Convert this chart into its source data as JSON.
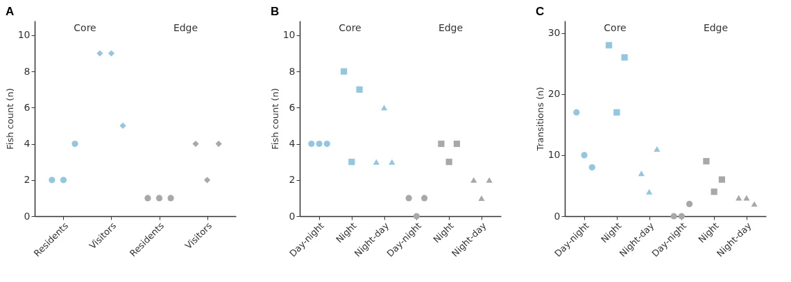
{
  "chart_data": [
    {
      "type": "scatter",
      "title": "A",
      "ylabel": "Fish count (n)",
      "categories": [
        "Residents",
        "Visitors",
        "Residents",
        "Visitors"
      ],
      "ylim": [
        0,
        10.8
      ],
      "yticks": [
        0,
        2,
        4,
        6,
        8,
        10
      ],
      "grid": false,
      "annotations": [
        "Core",
        "Edge"
      ],
      "series": [
        {
          "marker": "circle",
          "color": "#95c6df",
          "values": [
            2,
            null,
            null,
            null
          ]
        },
        {
          "marker": "circle",
          "color": "#95c6df",
          "values": [
            2,
            null,
            null,
            null
          ]
        },
        {
          "marker": "circle",
          "color": "#95c6df",
          "values": [
            4,
            null,
            null,
            null
          ]
        },
        {
          "marker": "diamond",
          "color": "#95c6df",
          "values": [
            null,
            9,
            null,
            null
          ]
        },
        {
          "marker": "diamond",
          "color": "#95c6df",
          "values": [
            null,
            9,
            null,
            null
          ]
        },
        {
          "marker": "diamond",
          "color": "#95c6df",
          "values": [
            null,
            5,
            null,
            null
          ]
        },
        {
          "marker": "circle",
          "color": "#a8a8a8",
          "values": [
            null,
            null,
            1,
            null
          ]
        },
        {
          "marker": "circle",
          "color": "#a8a8a8",
          "values": [
            null,
            null,
            1,
            null
          ]
        },
        {
          "marker": "circle",
          "color": "#a8a8a8",
          "values": [
            null,
            null,
            1,
            null
          ]
        },
        {
          "marker": "diamond",
          "color": "#a8a8a8",
          "values": [
            null,
            null,
            null,
            4
          ]
        },
        {
          "marker": "diamond",
          "color": "#a8a8a8",
          "values": [
            null,
            null,
            null,
            2
          ]
        },
        {
          "marker": "diamond",
          "color": "#a8a8a8",
          "values": [
            null,
            null,
            null,
            4
          ]
        }
      ]
    },
    {
      "type": "scatter",
      "title": "B",
      "ylabel": "Fish count (n)",
      "categories": [
        "Day-night",
        "Night",
        "Night-day",
        "Day-night",
        "Night",
        "Night-day"
      ],
      "ylim": [
        0,
        10.8
      ],
      "yticks": [
        0,
        2,
        4,
        6,
        8,
        10
      ],
      "grid": false,
      "annotations": [
        "Core",
        "Edge"
      ],
      "series": [
        {
          "marker": "circle",
          "color": "#95c6df",
          "values": [
            4,
            null,
            null,
            null,
            null,
            null
          ]
        },
        {
          "marker": "circle",
          "color": "#95c6df",
          "values": [
            4,
            null,
            null,
            null,
            null,
            null
          ]
        },
        {
          "marker": "circle",
          "color": "#95c6df",
          "values": [
            4,
            null,
            null,
            null,
            null,
            null
          ]
        },
        {
          "marker": "square",
          "color": "#95c6df",
          "values": [
            null,
            8,
            null,
            null,
            null,
            null
          ]
        },
        {
          "marker": "square",
          "color": "#95c6df",
          "values": [
            null,
            3,
            null,
            null,
            null,
            null
          ]
        },
        {
          "marker": "square",
          "color": "#95c6df",
          "values": [
            null,
            7,
            null,
            null,
            null,
            null
          ]
        },
        {
          "marker": "triangle",
          "color": "#95c6df",
          "values": [
            null,
            null,
            3,
            null,
            null,
            null
          ]
        },
        {
          "marker": "triangle",
          "color": "#95c6df",
          "values": [
            null,
            null,
            6,
            null,
            null,
            null
          ]
        },
        {
          "marker": "triangle",
          "color": "#95c6df",
          "values": [
            null,
            null,
            3,
            null,
            null,
            null
          ]
        },
        {
          "marker": "circle",
          "color": "#a8a8a8",
          "values": [
            null,
            null,
            null,
            1,
            null,
            null
          ]
        },
        {
          "marker": "circle",
          "color": "#a8a8a8",
          "values": [
            null,
            null,
            null,
            0,
            null,
            null
          ]
        },
        {
          "marker": "circle",
          "color": "#a8a8a8",
          "values": [
            null,
            null,
            null,
            1,
            null,
            null
          ]
        },
        {
          "marker": "square",
          "color": "#a8a8a8",
          "values": [
            null,
            null,
            null,
            null,
            4,
            null
          ]
        },
        {
          "marker": "square",
          "color": "#a8a8a8",
          "values": [
            null,
            null,
            null,
            null,
            3,
            null
          ]
        },
        {
          "marker": "square",
          "color": "#a8a8a8",
          "values": [
            null,
            null,
            null,
            null,
            4,
            null
          ]
        },
        {
          "marker": "triangle",
          "color": "#a8a8a8",
          "values": [
            null,
            null,
            null,
            null,
            null,
            2
          ]
        },
        {
          "marker": "triangle",
          "color": "#a8a8a8",
          "values": [
            null,
            null,
            null,
            null,
            null,
            1
          ]
        },
        {
          "marker": "triangle",
          "color": "#a8a8a8",
          "values": [
            null,
            null,
            null,
            null,
            null,
            2
          ]
        }
      ]
    },
    {
      "type": "scatter",
      "title": "C",
      "ylabel": "Transitions (n)",
      "categories": [
        "Day-night",
        "Night",
        "Night-day",
        "Day-night",
        "Night",
        "Night-day"
      ],
      "ylim": [
        0,
        32
      ],
      "yticks": [
        0,
        10,
        20,
        30
      ],
      "grid": false,
      "annotations": [
        "Core",
        "Edge"
      ],
      "series": [
        {
          "marker": "circle",
          "color": "#95c6df",
          "values": [
            17,
            null,
            null,
            null,
            null,
            null
          ]
        },
        {
          "marker": "circle",
          "color": "#95c6df",
          "values": [
            10,
            null,
            null,
            null,
            null,
            null
          ]
        },
        {
          "marker": "circle",
          "color": "#95c6df",
          "values": [
            8,
            null,
            null,
            null,
            null,
            null
          ]
        },
        {
          "marker": "square",
          "color": "#95c6df",
          "values": [
            null,
            28,
            null,
            null,
            null,
            null
          ]
        },
        {
          "marker": "square",
          "color": "#95c6df",
          "values": [
            null,
            17,
            null,
            null,
            null,
            null
          ]
        },
        {
          "marker": "square",
          "color": "#95c6df",
          "values": [
            null,
            26,
            null,
            null,
            null,
            null
          ]
        },
        {
          "marker": "triangle",
          "color": "#95c6df",
          "values": [
            null,
            null,
            7,
            null,
            null,
            null
          ]
        },
        {
          "marker": "triangle",
          "color": "#95c6df",
          "values": [
            null,
            null,
            4,
            null,
            null,
            null
          ]
        },
        {
          "marker": "triangle",
          "color": "#95c6df",
          "values": [
            null,
            null,
            11,
            null,
            null,
            null
          ]
        },
        {
          "marker": "circle",
          "color": "#a8a8a8",
          "values": [
            null,
            null,
            null,
            0,
            null,
            null
          ]
        },
        {
          "marker": "circle",
          "color": "#a8a8a8",
          "values": [
            null,
            null,
            null,
            0,
            null,
            null
          ]
        },
        {
          "marker": "circle",
          "color": "#a8a8a8",
          "values": [
            null,
            null,
            null,
            2,
            null,
            null
          ]
        },
        {
          "marker": "square",
          "color": "#a8a8a8",
          "values": [
            null,
            null,
            null,
            null,
            9,
            null
          ]
        },
        {
          "marker": "square",
          "color": "#a8a8a8",
          "values": [
            null,
            null,
            null,
            null,
            4,
            null
          ]
        },
        {
          "marker": "square",
          "color": "#a8a8a8",
          "values": [
            null,
            null,
            null,
            null,
            6,
            null
          ]
        },
        {
          "marker": "triangle",
          "color": "#a8a8a8",
          "values": [
            null,
            null,
            null,
            null,
            null,
            3
          ]
        },
        {
          "marker": "triangle",
          "color": "#a8a8a8",
          "values": [
            null,
            null,
            null,
            null,
            null,
            3
          ]
        },
        {
          "marker": "triangle",
          "color": "#a8a8a8",
          "values": [
            null,
            null,
            null,
            null,
            null,
            2
          ]
        }
      ]
    }
  ]
}
